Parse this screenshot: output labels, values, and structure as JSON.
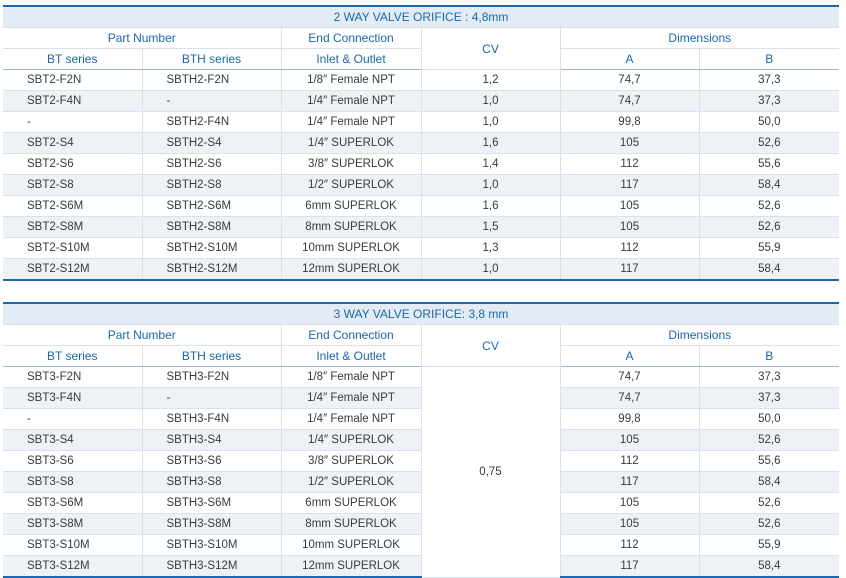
{
  "table1": {
    "title": "2 WAY VALVE ORIFICE : 4,8mm",
    "headers": {
      "part_number": "Part Number",
      "end_connection": "End Connection",
      "cv": "CV",
      "dimensions": "Dimensions",
      "bt_series": "BT series",
      "bth_series": "BTH series",
      "inlet_outlet": "Inlet & Outlet",
      "a": "A",
      "b": "B"
    },
    "rows": [
      {
        "bt": "SBT2-F2N",
        "bth": "SBTH2-F2N",
        "conn": "1/8″ Female NPT",
        "cv": "1,2",
        "a": "74,7",
        "b": "37,3"
      },
      {
        "bt": "SBT2-F4N",
        "bth": "-",
        "conn": "1/4″ Female NPT",
        "cv": "1,0",
        "a": "74,7",
        "b": "37,3"
      },
      {
        "bt": "-",
        "bth": "SBTH2-F4N",
        "conn": "1/4″ Female NPT",
        "cv": "1,0",
        "a": "99,8",
        "b": "50,0"
      },
      {
        "bt": "SBT2-S4",
        "bth": "SBTH2-S4",
        "conn": "1/4″ SUPERLOK",
        "cv": "1,6",
        "a": "105",
        "b": "52,6"
      },
      {
        "bt": "SBT2-S6",
        "bth": "SBTH2-S6",
        "conn": "3/8″ SUPERLOK",
        "cv": "1,4",
        "a": "112",
        "b": "55,6"
      },
      {
        "bt": "SBT2-S8",
        "bth": "SBTH2-S8",
        "conn": "1/2″ SUPERLOK",
        "cv": "1,0",
        "a": "117",
        "b": "58,4"
      },
      {
        "bt": "SBT2-S6M",
        "bth": "SBTH2-S6M",
        "conn": "6mm SUPERLOK",
        "cv": "1,6",
        "a": "105",
        "b": "52,6"
      },
      {
        "bt": "SBT2-S8M",
        "bth": "SBTH2-S8M",
        "conn": "8mm SUPERLOK",
        "cv": "1,5",
        "a": "105",
        "b": "52,6"
      },
      {
        "bt": "SBT2-S10M",
        "bth": "SBTH2-S10M",
        "conn": "10mm SUPERLOK",
        "cv": "1,3",
        "a": "112",
        "b": "55,9"
      },
      {
        "bt": "SBT2-S12M",
        "bth": "SBTH2-S12M",
        "conn": "12mm SUPERLOK",
        "cv": "1,0",
        "a": "117",
        "b": "58,4"
      }
    ]
  },
  "table2": {
    "title": "3 WAY VALVE ORIFICE: 3,8 mm",
    "headers": {
      "part_number": "Part Number",
      "end_connection": "End Connection",
      "cv": "CV",
      "dimensions": "Dimensions",
      "bt_series": "BT series",
      "bth_series": "BTH series",
      "inlet_outlet": "Inlet & Outlet",
      "a": "A",
      "b": "B"
    },
    "cv_shared": "0,75",
    "rows": [
      {
        "bt": "SBT3-F2N",
        "bth": "SBTH3-F2N",
        "conn": "1/8″ Female NPT",
        "a": "74,7",
        "b": "37,3"
      },
      {
        "bt": "SBT3-F4N",
        "bth": "-",
        "conn": "1/4″ Female NPT",
        "a": "74,7",
        "b": "37,3"
      },
      {
        "bt": "-",
        "bth": "SBTH3-F4N",
        "conn": "1/4″ Female NPT",
        "a": "99,8",
        "b": "50,0"
      },
      {
        "bt": "SBT3-S4",
        "bth": "SBTH3-S4",
        "conn": "1/4″ SUPERLOK",
        "a": "105",
        "b": "52,6"
      },
      {
        "bt": "SBT3-S6",
        "bth": "SBTH3-S6",
        "conn": "3/8″ SUPERLOK",
        "a": "112",
        "b": "55,6"
      },
      {
        "bt": "SBT3-S8",
        "bth": "SBTH3-S8",
        "conn": "1/2″ SUPERLOK",
        "a": "117",
        "b": "58,4"
      },
      {
        "bt": "SBT3-S6M",
        "bth": "SBTH3-S6M",
        "conn": "6mm SUPERLOK",
        "a": "105",
        "b": "52,6"
      },
      {
        "bt": "SBT3-S8M",
        "bth": "SBTH3-S8M",
        "conn": "8mm SUPERLOK",
        "a": "105",
        "b": "52,6"
      },
      {
        "bt": "SBT3-S10M",
        "bth": "SBTH3-S10M",
        "conn": "10mm SUPERLOK",
        "a": "112",
        "b": "55,9"
      },
      {
        "bt": "SBT3-S12M",
        "bth": "SBTH3-S12M",
        "conn": "12mm SUPERLOK",
        "a": "117",
        "b": "58,4"
      }
    ]
  },
  "colors": {
    "accent": "#1a67b3",
    "header_band": "#e3ecf5",
    "row_stripe": "#eef2f7"
  }
}
